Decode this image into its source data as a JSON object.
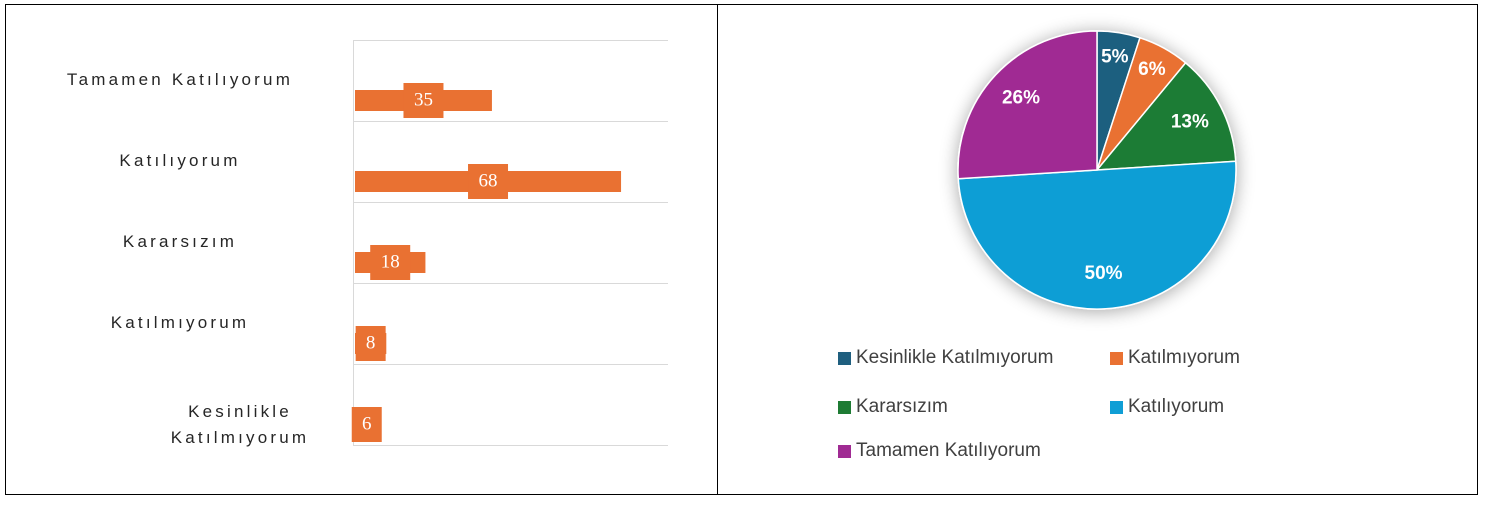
{
  "chart_data": [
    {
      "type": "bar",
      "orientation": "horizontal",
      "categories": [
        "Tamamen Katılıyorum",
        "Katılıyorum",
        "Kararsızım",
        "Katılmıyorum",
        "Kesinlikle Katılmıyorum"
      ],
      "values": [
        35,
        68,
        18,
        8,
        6
      ],
      "color": "#e97132",
      "xlim": [
        0,
        80
      ]
    },
    {
      "type": "pie",
      "categories": [
        "Kesinlikle Katılmıyorum",
        "Katılmıyorum",
        "Kararsızım",
        "Katılıyorum",
        "Tamamen Katılıyorum"
      ],
      "values": [
        5,
        6,
        13,
        50,
        26
      ],
      "value_labels": [
        "5%",
        "6%",
        "13%",
        "50%",
        "26%"
      ],
      "colors": [
        "#1f5f7f",
        "#e97132",
        "#1e7b34",
        "#0f9ed5",
        "#a02b93"
      ],
      "legend": "bottom"
    }
  ]
}
